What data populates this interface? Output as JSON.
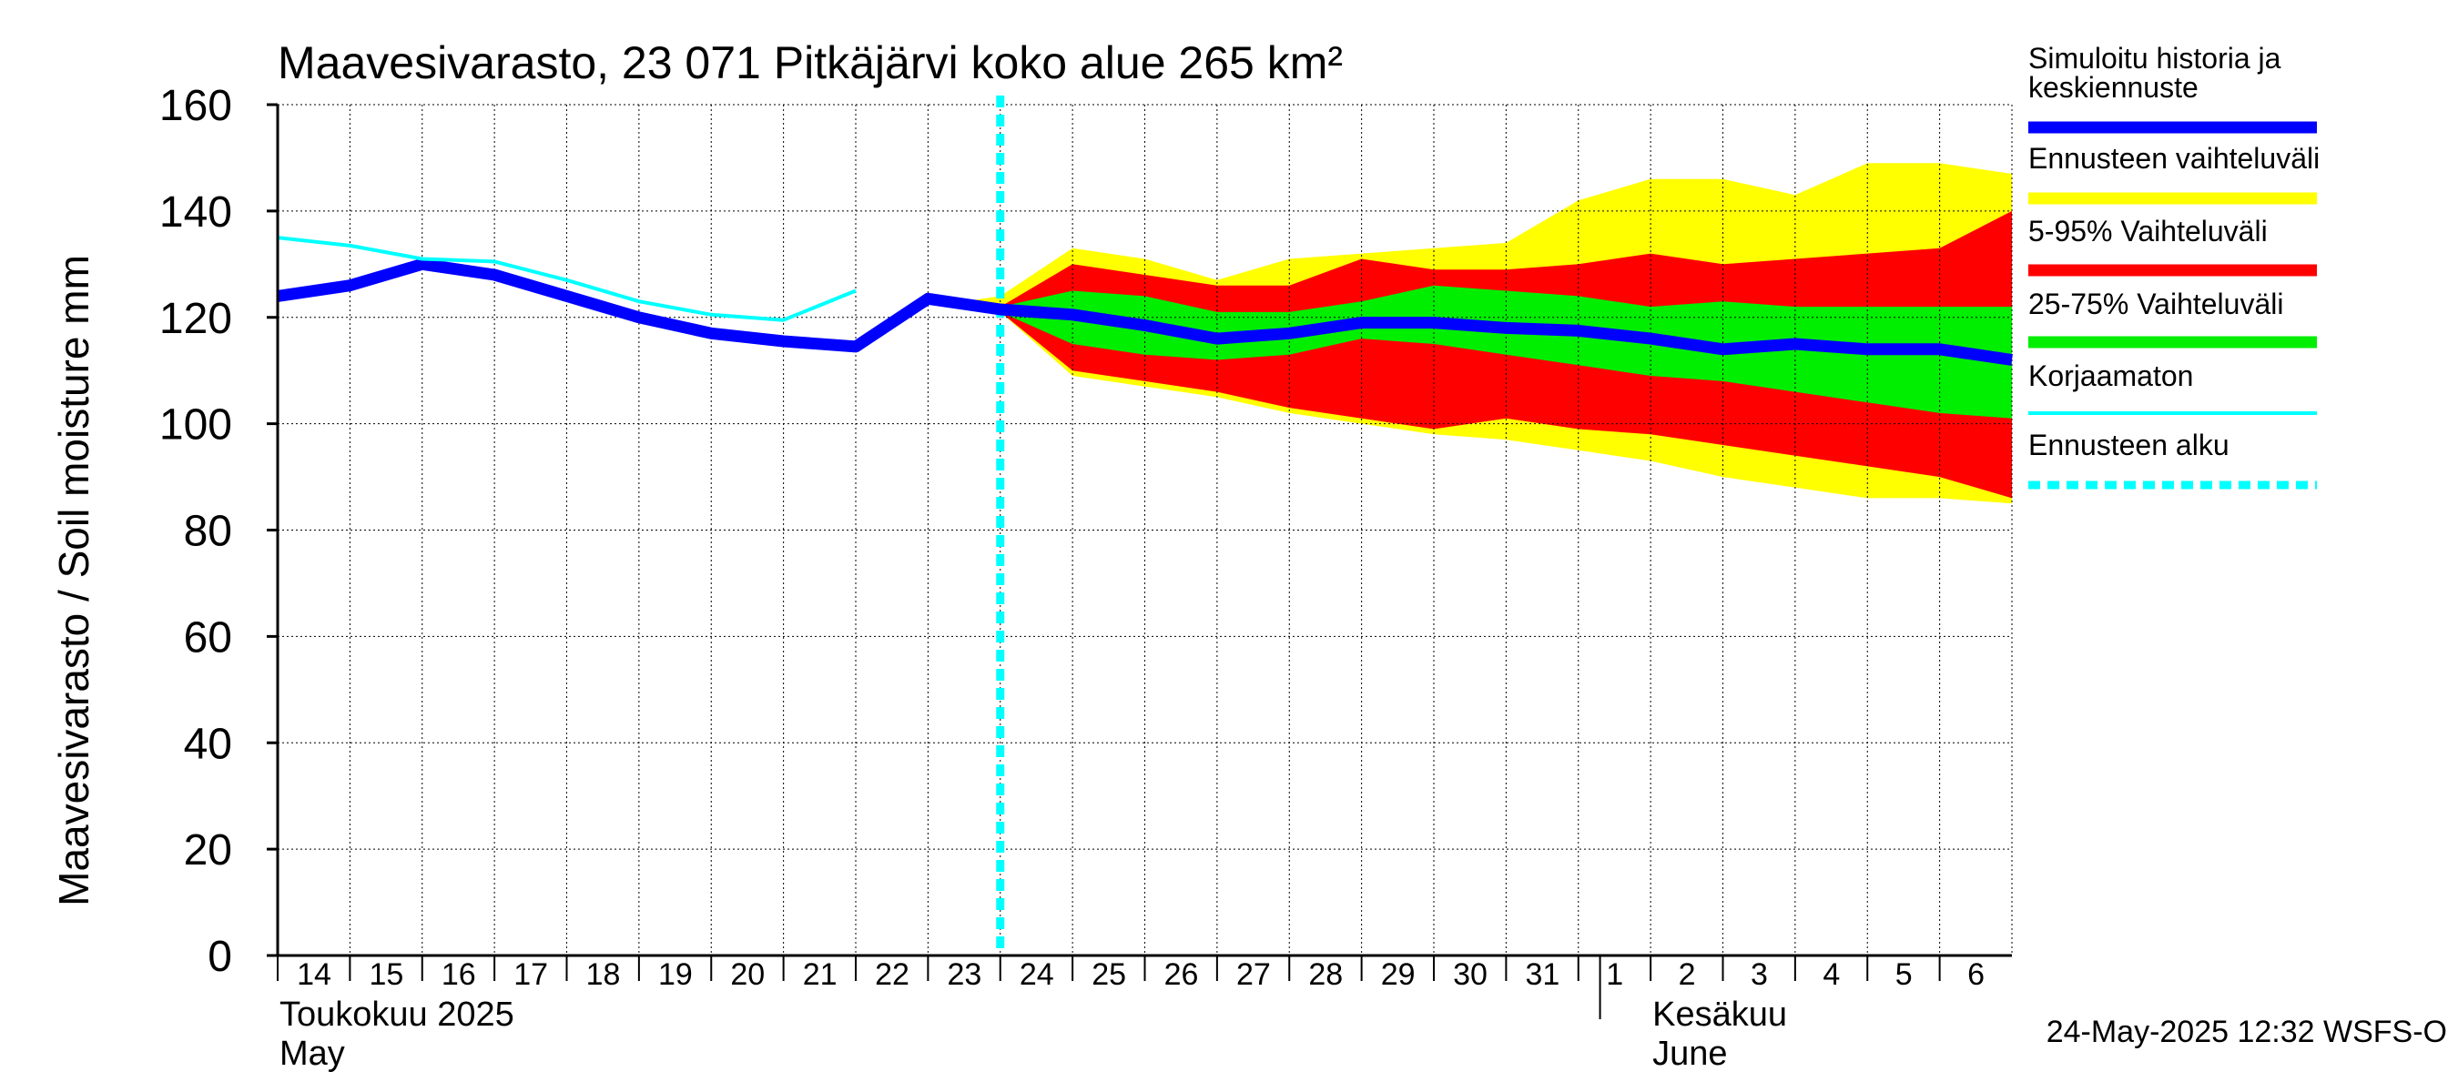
{
  "chart_data": {
    "type": "area",
    "title": "Maavesivarasto, 23 071 Pitkäjärvi koko alue 265 km²",
    "ylabel": "Maavesivarasto / Soil moisture   mm",
    "ylim": [
      0,
      160
    ],
    "yticks": [
      0,
      20,
      40,
      60,
      80,
      100,
      120,
      140,
      160
    ],
    "xlim": [
      0,
      24
    ],
    "grid": true,
    "x_ticks": [
      {
        "x": 0,
        "label": "14"
      },
      {
        "x": 1,
        "label": "15"
      },
      {
        "x": 2,
        "label": "16"
      },
      {
        "x": 3,
        "label": "17"
      },
      {
        "x": 4,
        "label": "18"
      },
      {
        "x": 5,
        "label": "19"
      },
      {
        "x": 6,
        "label": "20"
      },
      {
        "x": 7,
        "label": "21"
      },
      {
        "x": 8,
        "label": "22"
      },
      {
        "x": 9,
        "label": "23"
      },
      {
        "x": 10,
        "label": "24"
      },
      {
        "x": 11,
        "label": "25"
      },
      {
        "x": 12,
        "label": "26"
      },
      {
        "x": 13,
        "label": "27"
      },
      {
        "x": 14,
        "label": "28"
      },
      {
        "x": 15,
        "label": "29"
      },
      {
        "x": 16,
        "label": "30"
      },
      {
        "x": 17,
        "label": "31"
      },
      {
        "x": 18,
        "label": "1"
      },
      {
        "x": 19,
        "label": "2"
      },
      {
        "x": 20,
        "label": "3"
      },
      {
        "x": 21,
        "label": "4"
      },
      {
        "x": 22,
        "label": "5"
      },
      {
        "x": 23,
        "label": "6"
      }
    ],
    "month_labels": [
      {
        "x": 0,
        "line1": "Toukokuu  2025",
        "line2": "May"
      },
      {
        "x": 19,
        "line1": "Kesäkuu",
        "line2": "June"
      }
    ],
    "month_divider_x": 18.3,
    "forecast_start_x": 10.0,
    "bands": [
      {
        "name": "Ennusteen vaihteluväli",
        "color": "#ffff00",
        "x": [
          9.5,
          10,
          11,
          12,
          13,
          14,
          15,
          16,
          17,
          18,
          19,
          20,
          21,
          22,
          23,
          24
        ],
        "upper": [
          123,
          124,
          133,
          131,
          127,
          131,
          132,
          133,
          134,
          142,
          146,
          146,
          143,
          149,
          149,
          147
        ],
        "lower": [
          123,
          121,
          109,
          107,
          105,
          102,
          100,
          98,
          97,
          95,
          93,
          90,
          88,
          86,
          86,
          85
        ]
      },
      {
        "name": "5-95% Vaihteluväli",
        "color": "#ff0000",
        "x": [
          9.5,
          10,
          11,
          12,
          13,
          14,
          15,
          16,
          17,
          18,
          19,
          20,
          21,
          22,
          23,
          24
        ],
        "upper": [
          123,
          122,
          130,
          128,
          126,
          126,
          131,
          129,
          129,
          130,
          132,
          130,
          131,
          132,
          133,
          140
        ],
        "lower": [
          123,
          121,
          110,
          108,
          106,
          103,
          101,
          99,
          101,
          99,
          98,
          96,
          94,
          92,
          90,
          86
        ]
      },
      {
        "name": "25-75% Vaihteluväli",
        "color": "#00ee00",
        "x": [
          9.5,
          10,
          11,
          12,
          13,
          14,
          15,
          16,
          17,
          18,
          19,
          20,
          21,
          22,
          23,
          24
        ],
        "upper": [
          123,
          122,
          125,
          124,
          121,
          121,
          123,
          126,
          125,
          124,
          122,
          123,
          122,
          122,
          122,
          122
        ],
        "lower": [
          123,
          121,
          115,
          113,
          112,
          113,
          116,
          115,
          113,
          111,
          109,
          108,
          106,
          104,
          102,
          101
        ]
      }
    ],
    "series": [
      {
        "name": "Simuloitu historia ja keskiennuste",
        "color": "#0000ff",
        "x": [
          0,
          1,
          2,
          3,
          4,
          5,
          6,
          7,
          8,
          9,
          10,
          11,
          12,
          13,
          14,
          15,
          16,
          17,
          18,
          19,
          20,
          21,
          22,
          23,
          24
        ],
        "values": [
          124,
          126,
          130,
          128,
          124,
          120,
          117,
          115.5,
          114.5,
          123.5,
          121.5,
          120.5,
          118.5,
          116,
          117,
          119,
          119,
          118,
          117.5,
          116,
          114,
          115,
          114,
          114,
          112
        ]
      },
      {
        "name": "Korjaamaton",
        "color": "#00ffff",
        "x": [
          0,
          1,
          2,
          3,
          4,
          5,
          6,
          7,
          8
        ],
        "values": [
          135,
          133.5,
          131,
          130.5,
          127,
          123,
          120.5,
          119.5,
          125
        ]
      }
    ],
    "legend": [
      {
        "key": "simulated",
        "line1": "Simuloitu historia ja",
        "line2": "keskiennuste",
        "color": "#0000ff",
        "style": "thick"
      },
      {
        "key": "range",
        "line1": "Ennusteen vaihteluväli",
        "line2": "",
        "color": "#ffff00",
        "style": "band"
      },
      {
        "key": "p5_95",
        "line1": "5-95% Vaihteluväli",
        "line2": "",
        "color": "#ff0000",
        "style": "band"
      },
      {
        "key": "p25_75",
        "line1": "25-75% Vaihteluväli",
        "line2": "",
        "color": "#00ee00",
        "style": "band"
      },
      {
        "key": "uncorrected",
        "line1": "Korjaamaton",
        "line2": "",
        "color": "#00ffff",
        "style": "thin"
      },
      {
        "key": "forecast_start",
        "line1": "Ennusteen alku",
        "line2": "",
        "color": "#00ffff",
        "style": "dashed"
      }
    ],
    "legend_position": "right",
    "footer": "24-May-2025 12:32 WSFS-O"
  }
}
